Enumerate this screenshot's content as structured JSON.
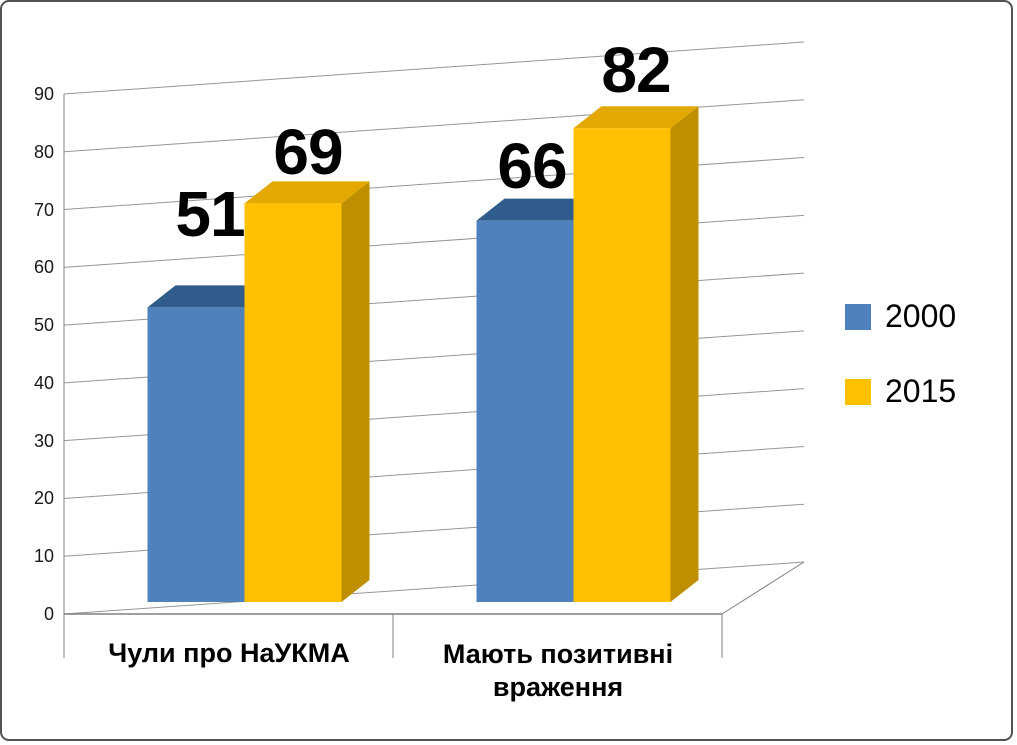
{
  "window": {
    "background": "#ffffff",
    "border_color": "#525252"
  },
  "chart_data": {
    "type": "bar",
    "variant": "3d-clustered-column",
    "title": "",
    "xlabel": "",
    "ylabel": "",
    "categories": [
      "Чули про НаУКМА",
      "Мають позитивні враження"
    ],
    "series": [
      {
        "name": "2000",
        "values": [
          51,
          66
        ],
        "color": "#4f81bd",
        "color_top": "#2f5c8a",
        "color_side": "#3a6ea5"
      },
      {
        "name": "2015",
        "values": [
          69,
          82
        ],
        "color": "#ffc000",
        "color_top": "#e3a900",
        "color_side": "#bf8f00"
      }
    ],
    "ylim": [
      0,
      90
    ],
    "ytick_step": 10,
    "yticks": [
      0,
      10,
      20,
      30,
      40,
      50,
      60,
      70,
      80,
      90
    ],
    "grid": true,
    "grid_color": "#969696",
    "axis_color": "#808080",
    "legend_position": "right",
    "data_labels": true,
    "data_label_color": "#000000",
    "text_color": "#000000"
  }
}
